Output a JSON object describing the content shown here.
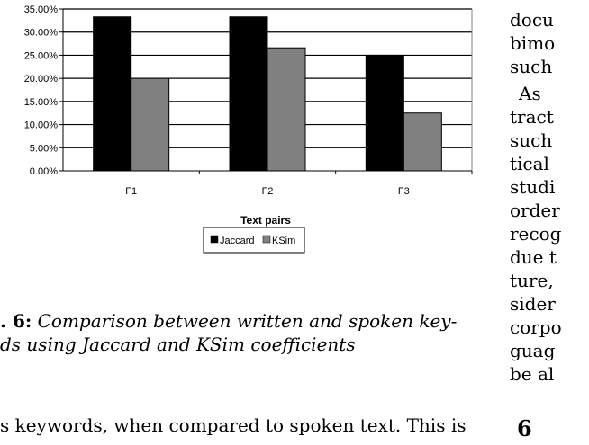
{
  "chart_data": {
    "type": "bar",
    "categories": [
      "F1",
      "F2",
      "F3"
    ],
    "series": [
      {
        "name": "Jaccard",
        "values": [
          33.3,
          33.3,
          25.0
        ],
        "color": "#000000"
      },
      {
        "name": "KSim",
        "values": [
          20.0,
          26.6,
          12.5
        ],
        "color": "#808080"
      }
    ],
    "title": "",
    "xlabel": "Text pairs",
    "ylabel": "",
    "ylim": [
      0,
      35
    ],
    "yticks": [
      "0.00%",
      "5.00%",
      "10.00%",
      "15.00%",
      "20.00%",
      "25.00%",
      "30.00%",
      "35.00%"
    ],
    "grid": true,
    "legend_position": "bottom"
  },
  "caption": {
    "number": "6:",
    "line1": "Comparison between written and spoken key-",
    "line2": "ds using Jaccard and KSim coefficients",
    "label_prefix": ". "
  },
  "body_text": "s keywords, when compared to spoken text. This is",
  "right_column": {
    "lines": [
      "docu",
      "bimo",
      "such",
      "As",
      "tract",
      "such",
      "tical",
      "studi",
      "order",
      "recog",
      "due t",
      "ture,",
      "sider",
      "corpo",
      "guag",
      "be al"
    ],
    "section_number": "6"
  }
}
